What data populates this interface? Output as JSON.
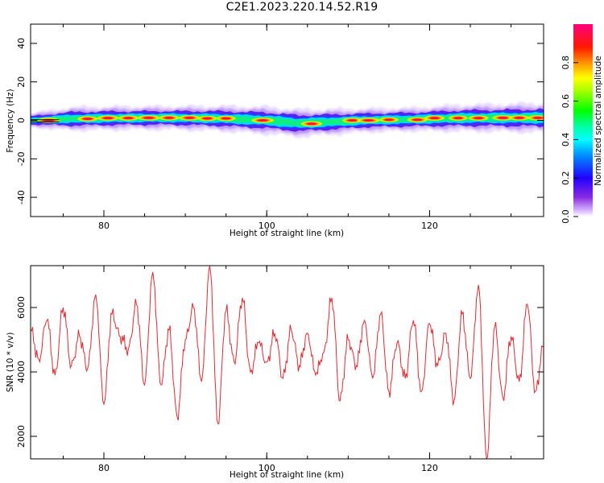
{
  "title": "C2E1.2023.220.14.52.R19",
  "chart_data": [
    {
      "type": "heatmap",
      "xlabel": "Height of straight line (km)",
      "ylabel": "Frequency (Hz)",
      "xlim": [
        71,
        134
      ],
      "ylim": [
        -50,
        50
      ],
      "xticks": [
        80,
        100,
        120
      ],
      "yticks": [
        -40,
        -20,
        0,
        20,
        40
      ],
      "colorbar": {
        "label": "Normalized spectral amplitude",
        "range": [
          0.0,
          1.0
        ],
        "ticks": [
          "0.0",
          "0.2",
          "0.4",
          "0.6",
          "0.8"
        ],
        "colormap": "rainbow (white-violet-blue-cyan-green-yellow-red-magenta)"
      },
      "band": [
        {
          "x": 71,
          "center": 0.0,
          "halfwidth": 1.8
        },
        {
          "x": 76,
          "center": 0.8,
          "halfwidth": 3.0
        },
        {
          "x": 82,
          "center": 1.2,
          "halfwidth": 3.0
        },
        {
          "x": 88,
          "center": 1.3,
          "halfwidth": 3.0
        },
        {
          "x": 94,
          "center": 1.0,
          "halfwidth": 3.2
        },
        {
          "x": 100,
          "center": 0.0,
          "halfwidth": 3.5
        },
        {
          "x": 104,
          "center": -1.5,
          "halfwidth": 3.5
        },
        {
          "x": 108,
          "center": -0.8,
          "halfwidth": 3.3
        },
        {
          "x": 112,
          "center": 0.0,
          "halfwidth": 3.0
        },
        {
          "x": 118,
          "center": 0.5,
          "halfwidth": 3.0
        },
        {
          "x": 124,
          "center": 1.2,
          "halfwidth": 3.4
        },
        {
          "x": 130,
          "center": 1.3,
          "halfwidth": 3.6
        },
        {
          "x": 134,
          "center": 1.3,
          "halfwidth": 3.8
        }
      ],
      "peaks": [
        {
          "x": 73.2,
          "y": 0.0,
          "amp": 1.0
        },
        {
          "x": 78.0,
          "y": 0.8,
          "amp": 0.9
        },
        {
          "x": 80.5,
          "y": 1.2,
          "amp": 0.95
        },
        {
          "x": 83.0,
          "y": 1.2,
          "amp": 0.9
        },
        {
          "x": 85.5,
          "y": 1.3,
          "amp": 1.0
        },
        {
          "x": 88.0,
          "y": 1.3,
          "amp": 0.9
        },
        {
          "x": 90.5,
          "y": 1.3,
          "amp": 0.95
        },
        {
          "x": 92.7,
          "y": 1.0,
          "amp": 0.85
        },
        {
          "x": 95.0,
          "y": 1.0,
          "amp": 0.85
        },
        {
          "x": 99.5,
          "y": 0.0,
          "amp": 1.0
        },
        {
          "x": 105.5,
          "y": -1.8,
          "amp": 0.95
        },
        {
          "x": 110.5,
          "y": 0.0,
          "amp": 0.9
        },
        {
          "x": 112.5,
          "y": 0.0,
          "amp": 1.0
        },
        {
          "x": 115.0,
          "y": 0.3,
          "amp": 0.85
        },
        {
          "x": 118.5,
          "y": 0.3,
          "amp": 0.9
        },
        {
          "x": 120.6,
          "y": 1.2,
          "amp": 0.9
        },
        {
          "x": 123.5,
          "y": 1.2,
          "amp": 0.85
        },
        {
          "x": 126.0,
          "y": 1.2,
          "amp": 0.9
        },
        {
          "x": 129.0,
          "y": 1.3,
          "amp": 0.95
        },
        {
          "x": 131.0,
          "y": 1.3,
          "amp": 0.9
        },
        {
          "x": 133.3,
          "y": 1.3,
          "amp": 0.9
        }
      ]
    },
    {
      "type": "line",
      "xlabel": "Height of straight line (km)",
      "ylabel": "SNR (10 * v/v)",
      "xlim": [
        71,
        134
      ],
      "ylim": [
        1300,
        7300
      ],
      "xticks": [
        80,
        100,
        120
      ],
      "yticks": [
        2000,
        4000,
        6000
      ],
      "series": [
        {
          "color": "#e8262b",
          "x": [
            71,
            72,
            73,
            74,
            75,
            76,
            77,
            78,
            79,
            80,
            81,
            82,
            83,
            84,
            85,
            86,
            87,
            88,
            89,
            90,
            91,
            92,
            93,
            94,
            95,
            96,
            97,
            98,
            99,
            100,
            101,
            102,
            103,
            104,
            105,
            106,
            107,
            108,
            109,
            110,
            111,
            112,
            113,
            114,
            115,
            116,
            117,
            118,
            119,
            120,
            121,
            122,
            123,
            124,
            125,
            126,
            127,
            128,
            129,
            130,
            131,
            132,
            133,
            134
          ],
          "values": [
            5300,
            4400,
            5600,
            3900,
            6000,
            4200,
            5100,
            4100,
            6400,
            3000,
            5800,
            5100,
            4700,
            6100,
            3600,
            7100,
            3600,
            5300,
            2600,
            5000,
            6000,
            3700,
            7300,
            2400,
            5900,
            4300,
            6300,
            4000,
            4900,
            4300,
            5200,
            3800,
            5300,
            4200,
            5200,
            3900,
            4600,
            6300,
            3100,
            5000,
            4200,
            5600,
            3800,
            5800,
            3400,
            4900,
            3800,
            5600,
            3400,
            5500,
            4200,
            5200,
            3100,
            5800,
            3800,
            6700,
            1300,
            5400,
            3200,
            5100,
            3700,
            6100,
            3400,
            4800
          ]
        }
      ]
    }
  ]
}
